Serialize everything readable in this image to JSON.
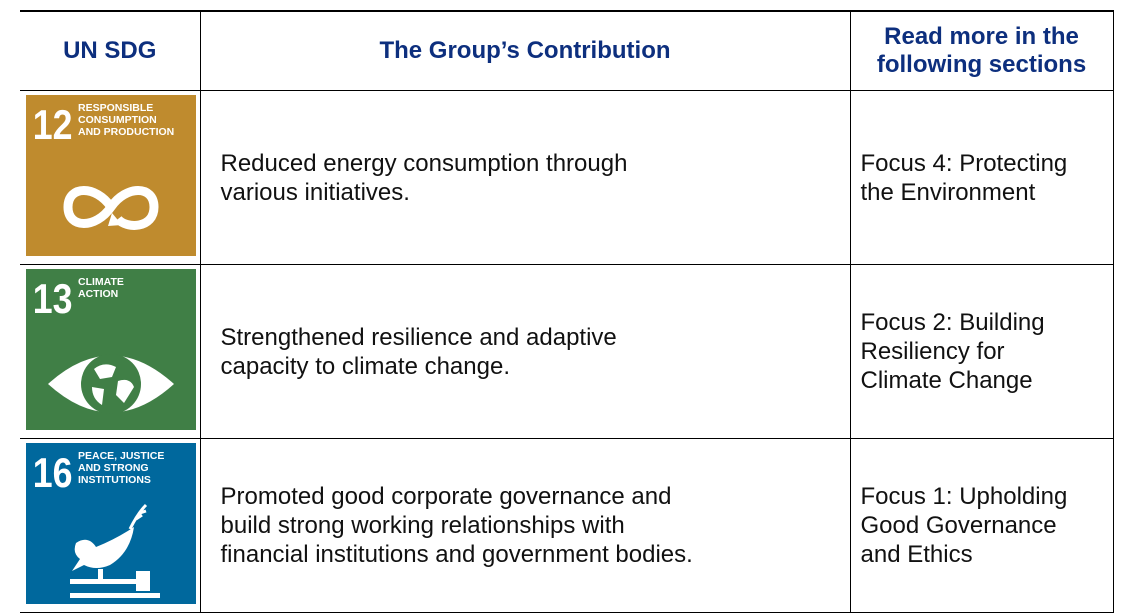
{
  "table": {
    "header": [
      "UN SDG",
      "The Group’s Contribution",
      [
        "Read more in the",
        "following sections"
      ]
    ],
    "rows": [
      {
        "sdg": {
          "number": "12",
          "label": [
            "RESPONSIBLE",
            "CONSUMPTION",
            "AND PRODUCTION"
          ]
        },
        "contribution": [
          "Reduced energy consumption through",
          "various initiatives."
        ],
        "sections": [
          "Focus 4: Protecting",
          "the Environment"
        ]
      },
      {
        "sdg": {
          "number": "13",
          "label": [
            "CLIMATE",
            "ACTION"
          ]
        },
        "contribution": [
          "Strengthened resilience and adaptive",
          "capacity to climate change."
        ],
        "sections": [
          "Focus 2: Building",
          "Resiliency for",
          "Climate Change"
        ]
      },
      {
        "sdg": {
          "number": "16",
          "label": [
            "PEACE, JUSTICE",
            "AND STRONG",
            "INSTITUTIONS"
          ]
        },
        "contribution": [
          "Promoted good corporate governance and",
          "build strong working relationships with",
          "financial institutions and government bodies."
        ],
        "sections": [
          "Focus 1: Upholding",
          "Good Governance",
          "and Ethics"
        ]
      }
    ]
  }
}
